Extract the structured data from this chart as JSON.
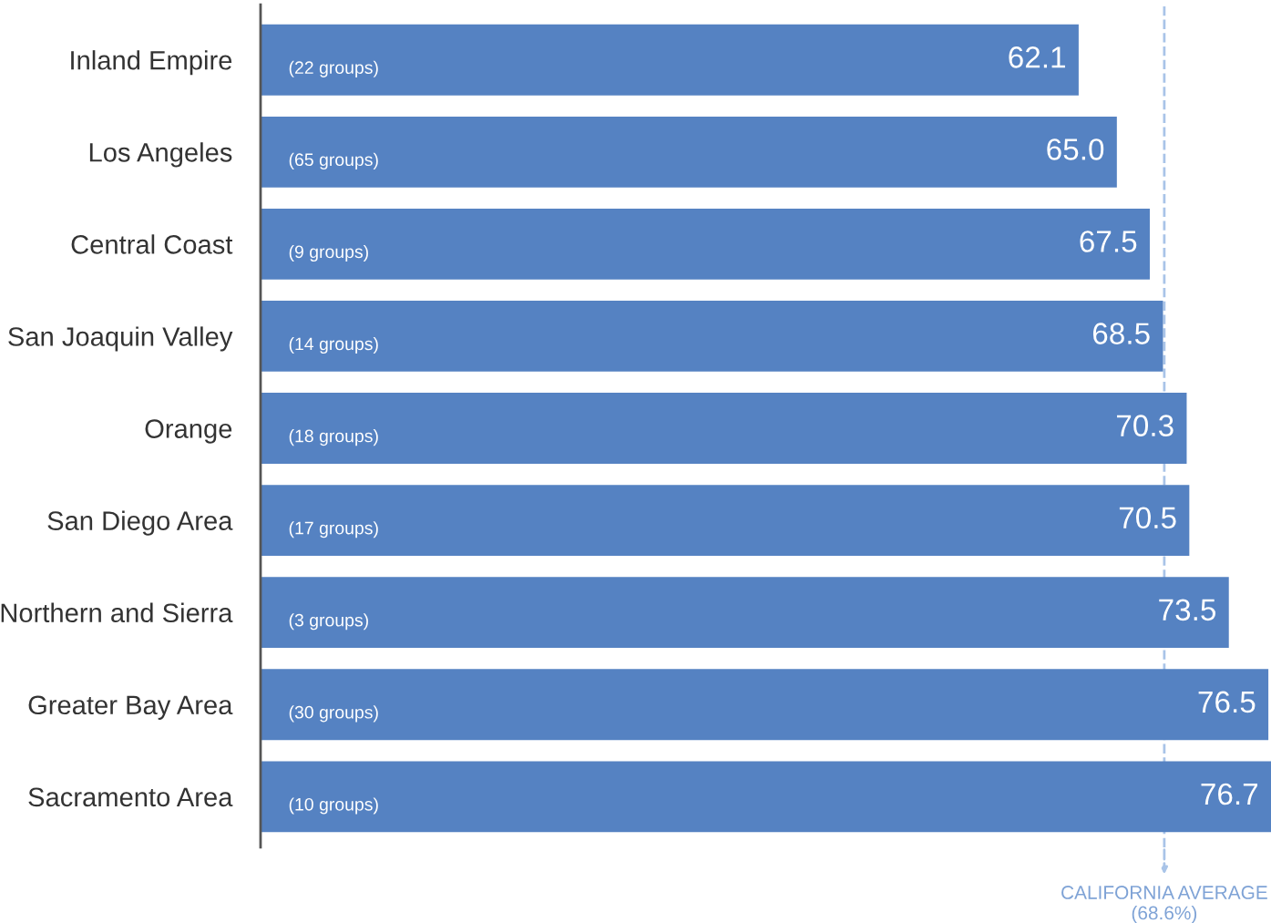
{
  "chart_data": {
    "type": "bar",
    "orientation": "horizontal",
    "categories": [
      "Inland Empire",
      "Los Angeles",
      "Central Coast",
      "San Joaquin Valley",
      "Orange",
      "San Diego Area",
      "Northern and Sierra",
      "Greater Bay Area",
      "Sacramento Area"
    ],
    "values": [
      62.1,
      65.0,
      67.5,
      68.5,
      70.3,
      70.5,
      73.5,
      76.5,
      76.7
    ],
    "color": "#5582c2",
    "value_labels": [
      "62.1",
      "65.0",
      "67.5",
      "68.5",
      "70.3",
      "70.5",
      "73.5",
      "76.5",
      "76.7"
    ],
    "xlim": [
      0,
      76.7
    ],
    "tick_labels": "y",
    "grid": false,
    "legend": false,
    "ref_lines": [
      {
        "axis": "x",
        "value": 68.6,
        "label": "CALIFORNIA AVERAGE\n(68.6%)",
        "color": "#a9c4e8",
        "line_style": "dashed"
      }
    ],
    "annotations": [
      "(22 groups)",
      "(65 groups)",
      "(9 groups)",
      "(14 groups)",
      "(18 groups)",
      "(17 groups)",
      "(3 groups)",
      "(30 groups)",
      "(10 groups)"
    ]
  }
}
